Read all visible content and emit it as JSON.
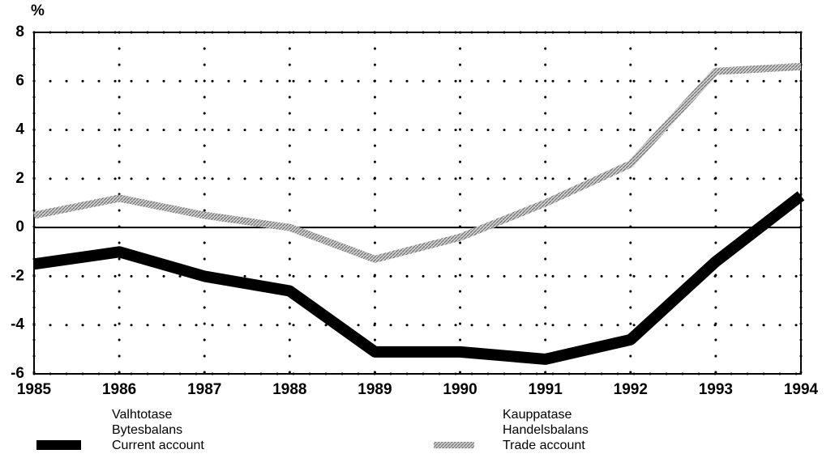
{
  "chart_data": {
    "type": "line",
    "y_label": "%",
    "x": [
      1985,
      1986,
      1987,
      1988,
      1989,
      1990,
      1991,
      1992,
      1993,
      1994
    ],
    "xlim": [
      1985,
      1994
    ],
    "xticks": [
      1985,
      1986,
      1987,
      1988,
      1989,
      1990,
      1991,
      1992,
      1993,
      1994
    ],
    "ylim": [
      -6,
      8
    ],
    "yticks": [
      -6,
      -4,
      -2,
      0,
      2,
      4,
      6,
      8
    ],
    "grid": true,
    "series": [
      {
        "name": "Current account",
        "name_fi": "Valhtotase",
        "name_sv": "Bytesbalans",
        "color": "#000000",
        "values": [
          -1.5,
          -1.0,
          -2.0,
          -2.6,
          -5.1,
          -5.1,
          -5.4,
          -4.6,
          -1.4,
          1.3
        ]
      },
      {
        "name": "Trade account",
        "name_fi": "Kauppatase",
        "name_sv": "Handelsbalans",
        "color": "#9a9a9a",
        "values": [
          0.5,
          1.2,
          0.5,
          0.0,
          -1.3,
          -0.4,
          1.0,
          2.6,
          6.4,
          6.6
        ]
      }
    ]
  }
}
